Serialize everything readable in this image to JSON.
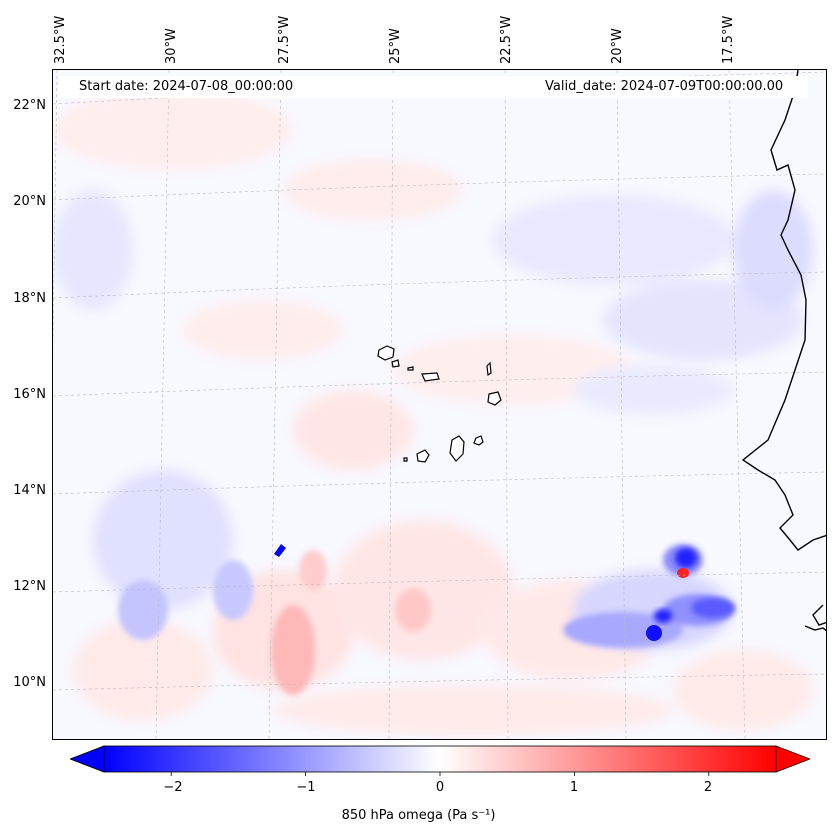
{
  "header": {
    "start_date": "Start date: 2024-07-08_00:00:00",
    "valid_date": "Valid_date: 2024-07-09T00:00:00.00"
  },
  "axes": {
    "lat_labels": [
      "22°N",
      "20°N",
      "18°N",
      "16°N",
      "14°N",
      "12°N",
      "10°N"
    ],
    "lon_labels": [
      "32.5°W",
      "30°W",
      "27.5°W",
      "25°W",
      "22.5°W",
      "20°W",
      "17.5°W"
    ]
  },
  "colorbar": {
    "label": "850 hPa omega (Pa s⁻¹)",
    "tick_labels": [
      "−2",
      "−1",
      "0",
      "1",
      "2"
    ],
    "ticks": [
      -2,
      -1,
      0,
      1,
      2
    ],
    "range": [
      -2.5,
      2.5
    ],
    "colormap": "bwr",
    "colors": {
      "negative": "#0000ff",
      "zero": "#ffffff",
      "positive": "#ff0000"
    }
  }
}
